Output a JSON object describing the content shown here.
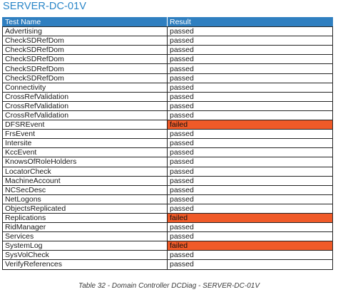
{
  "title": "SERVER-DC-01V",
  "table": {
    "headers": {
      "test": "Test Name",
      "result": "Result"
    },
    "failed_color": "#f05a28",
    "header_color": "#2f7fc0",
    "rows": [
      {
        "test": "Advertising",
        "result": "passed"
      },
      {
        "test": "CheckSDRefDom",
        "result": "passed"
      },
      {
        "test": "CheckSDRefDom",
        "result": "passed"
      },
      {
        "test": "CheckSDRefDom",
        "result": "passed"
      },
      {
        "test": "CheckSDRefDom",
        "result": "passed"
      },
      {
        "test": "CheckSDRefDom",
        "result": "passed"
      },
      {
        "test": "Connectivity",
        "result": "passed"
      },
      {
        "test": "CrossRefValidation",
        "result": "passed"
      },
      {
        "test": "CrossRefValidation",
        "result": "passed"
      },
      {
        "test": "CrossRefValidation",
        "result": "passed"
      },
      {
        "test": "DFSREvent",
        "result": "failed"
      },
      {
        "test": "FrsEvent",
        "result": "passed"
      },
      {
        "test": "Intersite",
        "result": "passed"
      },
      {
        "test": "KccEvent",
        "result": "passed"
      },
      {
        "test": "KnowsOfRoleHolders",
        "result": "passed"
      },
      {
        "test": "LocatorCheck",
        "result": "passed"
      },
      {
        "test": "MachineAccount",
        "result": "passed"
      },
      {
        "test": "NCSecDesc",
        "result": "passed"
      },
      {
        "test": "NetLogons",
        "result": "passed"
      },
      {
        "test": "ObjectsReplicated",
        "result": "passed"
      },
      {
        "test": "Replications",
        "result": "failed"
      },
      {
        "test": "RidManager",
        "result": "passed"
      },
      {
        "test": "Services",
        "result": "passed"
      },
      {
        "test": "SystemLog",
        "result": "failed"
      },
      {
        "test": "SysVolCheck",
        "result": "passed"
      },
      {
        "test": "VerifyReferences",
        "result": "passed"
      }
    ]
  },
  "caption": "Table 32 - Domain Controller DCDiag - SERVER-DC-01V"
}
